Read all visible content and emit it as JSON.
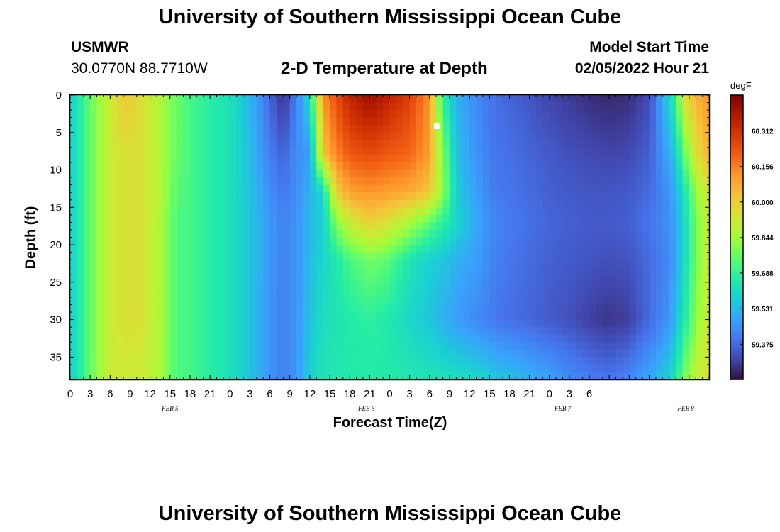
{
  "header": {
    "title": "University of Southern Mississippi Ocean Cube",
    "station": "USMWR",
    "coords": "30.0770N  88.7710W",
    "subtitle": "2-D Temperature at Depth",
    "start_label": "Model Start Time",
    "start_value": "02/05/2022 Hour 21"
  },
  "footer": {
    "title": "University of Southern Mississippi Ocean Cube"
  },
  "chart_data": {
    "type": "heatmap",
    "xlabel": "Forecast Time(Z)",
    "ylabel": "Depth (ft)",
    "unit": "degF",
    "x_hours": [
      0,
      96
    ],
    "y_range": [
      0,
      38
    ],
    "y_ticks": [
      0,
      5,
      10,
      15,
      20,
      25,
      30,
      35
    ],
    "x_tick_labels": [
      "0",
      "3",
      "6",
      "9",
      "12",
      "15",
      "18",
      "21",
      "0",
      "3",
      "6",
      "9",
      "12",
      "15",
      "18",
      "21",
      "0",
      "3",
      "6",
      "9",
      "12",
      "15",
      "18",
      "21",
      "0",
      "3",
      "6"
    ],
    "date_labels": [
      {
        "label": "FEB 5",
        "hour": 15
      },
      {
        "label": "FEB 6",
        "hour": 44.5
      },
      {
        "label": "FEB 7",
        "hour": 74
      },
      {
        "label": "FEB 8",
        "hour": 92.5
      }
    ],
    "colorbar": {
      "range": [
        59.22,
        60.47
      ],
      "tick_values": [
        60.312,
        60.156,
        60.0,
        59.844,
        59.688,
        59.531,
        59.375
      ],
      "tick_labels": [
        "60.312",
        "60.156",
        "60.000",
        "59.844",
        "59.688",
        "59.531",
        "59.375"
      ],
      "colors": [
        "#30123b",
        "#4145ab",
        "#4675ed",
        "#39a2fc",
        "#1bcfd4",
        "#24eca6",
        "#61fc6c",
        "#a4fc3b",
        "#d1e834",
        "#f3c63a",
        "#fe9b2d",
        "#f36315",
        "#d93806",
        "#b11901",
        "#7a0402"
      ]
    },
    "profiles": {
      "hours": [
        0,
        3,
        6,
        8,
        10,
        12,
        14,
        16,
        18,
        21,
        24,
        27,
        30,
        32,
        34,
        36,
        38,
        40,
        42,
        45,
        48,
        51,
        54,
        56,
        58,
        61,
        63,
        64,
        66,
        69,
        72,
        75,
        78,
        81,
        84,
        87,
        90,
        91,
        92,
        93,
        95,
        96
      ],
      "depths": [
        0,
        8,
        13,
        17,
        22,
        30,
        38
      ],
      "values": [
        [
          59.58,
          59.58,
          59.58,
          59.58,
          59.58,
          59.58,
          59.58
        ],
        [
          59.76,
          59.76,
          59.76,
          59.76,
          59.76,
          59.76,
          59.76
        ],
        [
          59.92,
          59.92,
          59.92,
          59.92,
          59.92,
          59.92,
          59.92
        ],
        [
          60.02,
          59.95,
          59.95,
          59.95,
          59.95,
          59.95,
          59.92
        ],
        [
          59.98,
          59.96,
          59.96,
          59.96,
          59.96,
          59.96,
          59.92
        ],
        [
          59.92,
          59.92,
          59.92,
          59.92,
          59.92,
          59.92,
          59.9
        ],
        [
          59.85,
          59.85,
          59.85,
          59.84,
          59.84,
          59.84,
          59.83
        ],
        [
          59.76,
          59.76,
          59.74,
          59.72,
          59.72,
          59.72,
          59.72
        ],
        [
          59.72,
          59.72,
          59.72,
          59.72,
          59.72,
          59.72,
          59.72
        ],
        [
          59.67,
          59.67,
          59.67,
          59.67,
          59.67,
          59.67,
          59.67
        ],
        [
          59.63,
          59.63,
          59.63,
          59.63,
          59.63,
          59.63,
          59.63
        ],
        [
          59.53,
          59.54,
          59.55,
          59.56,
          59.56,
          59.56,
          59.56
        ],
        [
          59.37,
          59.42,
          59.45,
          59.47,
          59.47,
          59.46,
          59.46
        ],
        [
          59.27,
          59.36,
          59.4,
          59.42,
          59.42,
          59.42,
          59.42
        ],
        [
          59.42,
          59.45,
          59.45,
          59.46,
          59.46,
          59.46,
          59.46
        ],
        [
          59.62,
          59.47,
          59.52,
          59.53,
          59.53,
          59.55,
          59.58
        ],
        [
          60.12,
          60.02,
          59.6,
          59.58,
          59.6,
          59.62,
          59.64
        ],
        [
          60.25,
          60.15,
          60.0,
          59.8,
          59.65,
          59.64,
          59.65
        ],
        [
          60.35,
          60.22,
          60.1,
          59.92,
          59.72,
          59.66,
          59.66
        ],
        [
          60.42,
          60.25,
          60.12,
          60.0,
          59.78,
          59.68,
          59.66
        ],
        [
          60.35,
          60.22,
          60.1,
          59.95,
          59.74,
          59.65,
          59.66
        ],
        [
          60.28,
          60.2,
          60.08,
          59.86,
          59.64,
          59.6,
          59.65
        ],
        [
          60.12,
          60.1,
          60.02,
          59.75,
          59.58,
          59.56,
          59.64
        ],
        [
          59.68,
          59.8,
          59.82,
          59.68,
          59.56,
          59.52,
          59.63
        ],
        [
          59.52,
          59.55,
          59.58,
          59.6,
          59.52,
          59.48,
          59.62
        ],
        [
          59.44,
          59.46,
          59.48,
          59.5,
          59.48,
          59.44,
          59.6
        ],
        [
          59.4,
          59.42,
          59.43,
          59.45,
          59.44,
          59.42,
          59.58
        ],
        [
          59.39,
          59.4,
          59.41,
          59.43,
          59.42,
          59.4,
          59.56
        ],
        [
          59.37,
          59.39,
          59.4,
          59.41,
          59.4,
          59.39,
          59.55
        ],
        [
          59.34,
          59.37,
          59.38,
          59.39,
          59.38,
          59.37,
          59.52
        ],
        [
          59.31,
          59.35,
          59.36,
          59.37,
          59.36,
          59.35,
          59.49
        ],
        [
          59.29,
          59.33,
          59.35,
          59.36,
          59.35,
          59.33,
          59.45
        ],
        [
          59.27,
          59.32,
          59.34,
          59.35,
          59.34,
          59.3,
          59.42
        ],
        [
          59.26,
          59.31,
          59.34,
          59.35,
          59.33,
          59.28,
          59.4
        ],
        [
          59.27,
          59.32,
          59.35,
          59.36,
          59.34,
          59.3,
          59.44
        ],
        [
          59.32,
          59.36,
          59.38,
          59.4,
          59.38,
          59.38,
          59.5
        ],
        [
          59.6,
          59.5,
          59.46,
          59.45,
          59.44,
          59.46,
          59.58
        ],
        [
          59.7,
          59.58,
          59.52,
          59.5,
          59.5,
          59.54,
          59.66
        ],
        [
          59.92,
          59.72,
          59.6,
          59.58,
          59.58,
          59.62,
          59.76
        ],
        [
          60.02,
          59.85,
          59.72,
          59.68,
          59.68,
          59.72,
          59.84
        ],
        [
          60.1,
          60.02,
          59.9,
          59.86,
          59.86,
          59.88,
          59.94
        ],
        [
          60.12,
          60.05,
          59.94,
          59.92,
          59.92,
          59.93,
          59.96
        ]
      ]
    }
  }
}
